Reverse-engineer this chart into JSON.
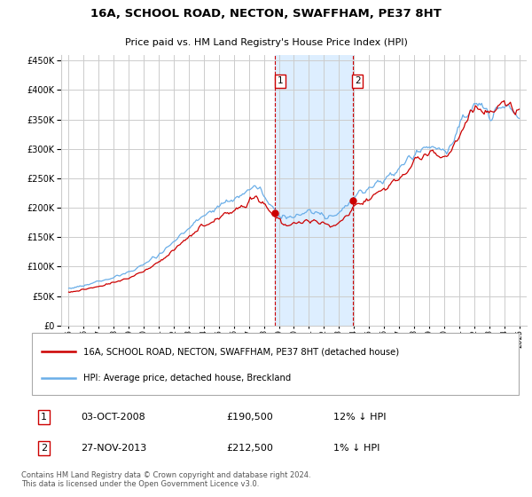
{
  "title": "16A, SCHOOL ROAD, NECTON, SWAFFHAM, PE37 8HT",
  "subtitle": "Price paid vs. HM Land Registry's House Price Index (HPI)",
  "legend_line1": "16A, SCHOOL ROAD, NECTON, SWAFFHAM, PE37 8HT (detached house)",
  "legend_line2": "HPI: Average price, detached house, Breckland",
  "transaction1_date": "03-OCT-2008",
  "transaction1_price": "£190,500",
  "transaction1_hpi": "12% ↓ HPI",
  "transaction2_date": "27-NOV-2013",
  "transaction2_price": "£212,500",
  "transaction2_hpi": "1% ↓ HPI",
  "footer": "Contains HM Land Registry data © Crown copyright and database right 2024.\nThis data is licensed under the Open Government Licence v3.0.",
  "ylim": [
    0,
    460000
  ],
  "yticks": [
    0,
    50000,
    100000,
    150000,
    200000,
    250000,
    300000,
    350000,
    400000,
    450000
  ],
  "background_color": "#ffffff",
  "plot_bg_color": "#ffffff",
  "grid_color": "#cccccc",
  "highlight_color": "#ddeeff",
  "line_color_red": "#cc0000",
  "line_color_blue": "#6aaee8",
  "vline_color": "#cc0000",
  "transaction1_x": 2008.75,
  "transaction2_x": 2013.9,
  "transaction1_y": 190500,
  "transaction2_y": 212500,
  "xlim_left": 1994.5,
  "xlim_right": 2025.5
}
